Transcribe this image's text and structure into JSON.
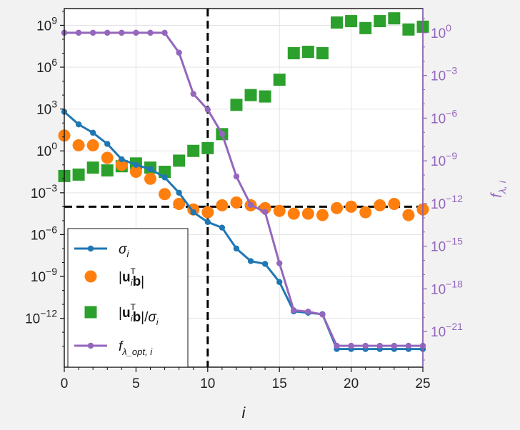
{
  "chart_data": {
    "type": "line",
    "xlabel": "i",
    "ylabel_right": "f_{λ,i}",
    "xlim": [
      0,
      25
    ],
    "ylim_left_log10": [
      -15.5,
      10.2
    ],
    "ylim_right_log10": [
      -23.5,
      1.7
    ],
    "x_ticks": [
      "0",
      "5",
      "10",
      "20",
      "25",
      "15"
    ],
    "x_tick_values": [
      0,
      5,
      10,
      20,
      25,
      15
    ],
    "left_tick_exponents": [
      9,
      6,
      3,
      0,
      -3,
      -6,
      -9,
      -12
    ],
    "right_tick_exponents": [
      0,
      -3,
      -6,
      -9,
      -12,
      -15,
      -18,
      -21
    ],
    "grid": true,
    "legend_position": "lower-left",
    "legend": [
      {
        "label": "σ",
        "sub": "i"
      },
      {
        "label": "|u",
        "sup": "T",
        "sub": "i",
        "tail": "b|"
      },
      {
        "label": "|u",
        "sup": "T",
        "sub": "i",
        "tail": "b|/σ",
        "tail_sub": "i"
      },
      {
        "label": "f",
        "sub": "λ_opt, i"
      }
    ],
    "x": [
      0,
      1,
      2,
      3,
      4,
      5,
      6,
      7,
      8,
      9,
      10,
      11,
      12,
      13,
      14,
      15,
      16,
      17,
      18,
      19,
      20,
      21,
      22,
      23,
      24,
      25
    ],
    "series": [
      {
        "name": "σ_i",
        "axis": "left",
        "color": "#1f77b4",
        "marker": "dot",
        "values_log10": [
          2.8,
          1.9,
          1.3,
          0.5,
          -0.6,
          -1.0,
          -1.3,
          -1.9,
          -3.0,
          -4.4,
          -5.1,
          -5.5,
          -7.0,
          -7.9,
          -8.1,
          -9.4,
          -11.5,
          -11.6,
          -11.7,
          -14.2,
          -14.2,
          -14.2,
          -14.2,
          -14.2,
          -14.2,
          -14.2
        ]
      },
      {
        "name": "|u_i^T b|",
        "axis": "left",
        "color": "#ff7f0e",
        "marker": "circle",
        "values_log10": [
          1.1,
          0.4,
          0.4,
          -0.5,
          -1.0,
          -1.5,
          -2.0,
          -3.1,
          -3.8,
          -4.2,
          -4.4,
          -3.9,
          -3.7,
          -3.9,
          -4.1,
          -4.3,
          -4.5,
          -4.5,
          -4.6,
          -4.1,
          -4.0,
          -4.4,
          -3.9,
          -3.8,
          -4.6,
          -4.2
        ]
      },
      {
        "name": "|u_i^T b|/σ_i",
        "axis": "left",
        "color": "#2ca02c",
        "marker": "square",
        "values_log10": [
          -1.8,
          -1.7,
          -1.2,
          -1.4,
          -1.1,
          -0.9,
          -1.2,
          -1.5,
          -0.7,
          0.0,
          0.2,
          1.2,
          3.3,
          4.0,
          3.9,
          5.1,
          7.0,
          7.1,
          7.0,
          9.2,
          9.3,
          8.8,
          9.3,
          9.5,
          8.7,
          8.9
        ]
      },
      {
        "name": "f_{λopt,i}",
        "axis": "right",
        "color": "#9467bd",
        "marker": "dot",
        "values_log10": [
          0,
          0,
          0,
          0,
          0,
          0,
          0,
          0,
          -1.4,
          -4.3,
          -5.4,
          -7.1,
          -10.1,
          -12.1,
          -12.6,
          -16.2,
          -19.5,
          -19.6,
          -19.8,
          -22.0,
          -22.0,
          -22.0,
          -22.0,
          -22.0,
          -22.0,
          -22.0
        ]
      }
    ],
    "reference_lines": [
      {
        "orientation": "vertical",
        "axis": "x",
        "value": 10,
        "style": "dashed",
        "color": "#000000"
      },
      {
        "orientation": "horizontal",
        "axis": "left",
        "value_log10": -4.0,
        "style": "dashed",
        "color": "#000000"
      }
    ]
  }
}
